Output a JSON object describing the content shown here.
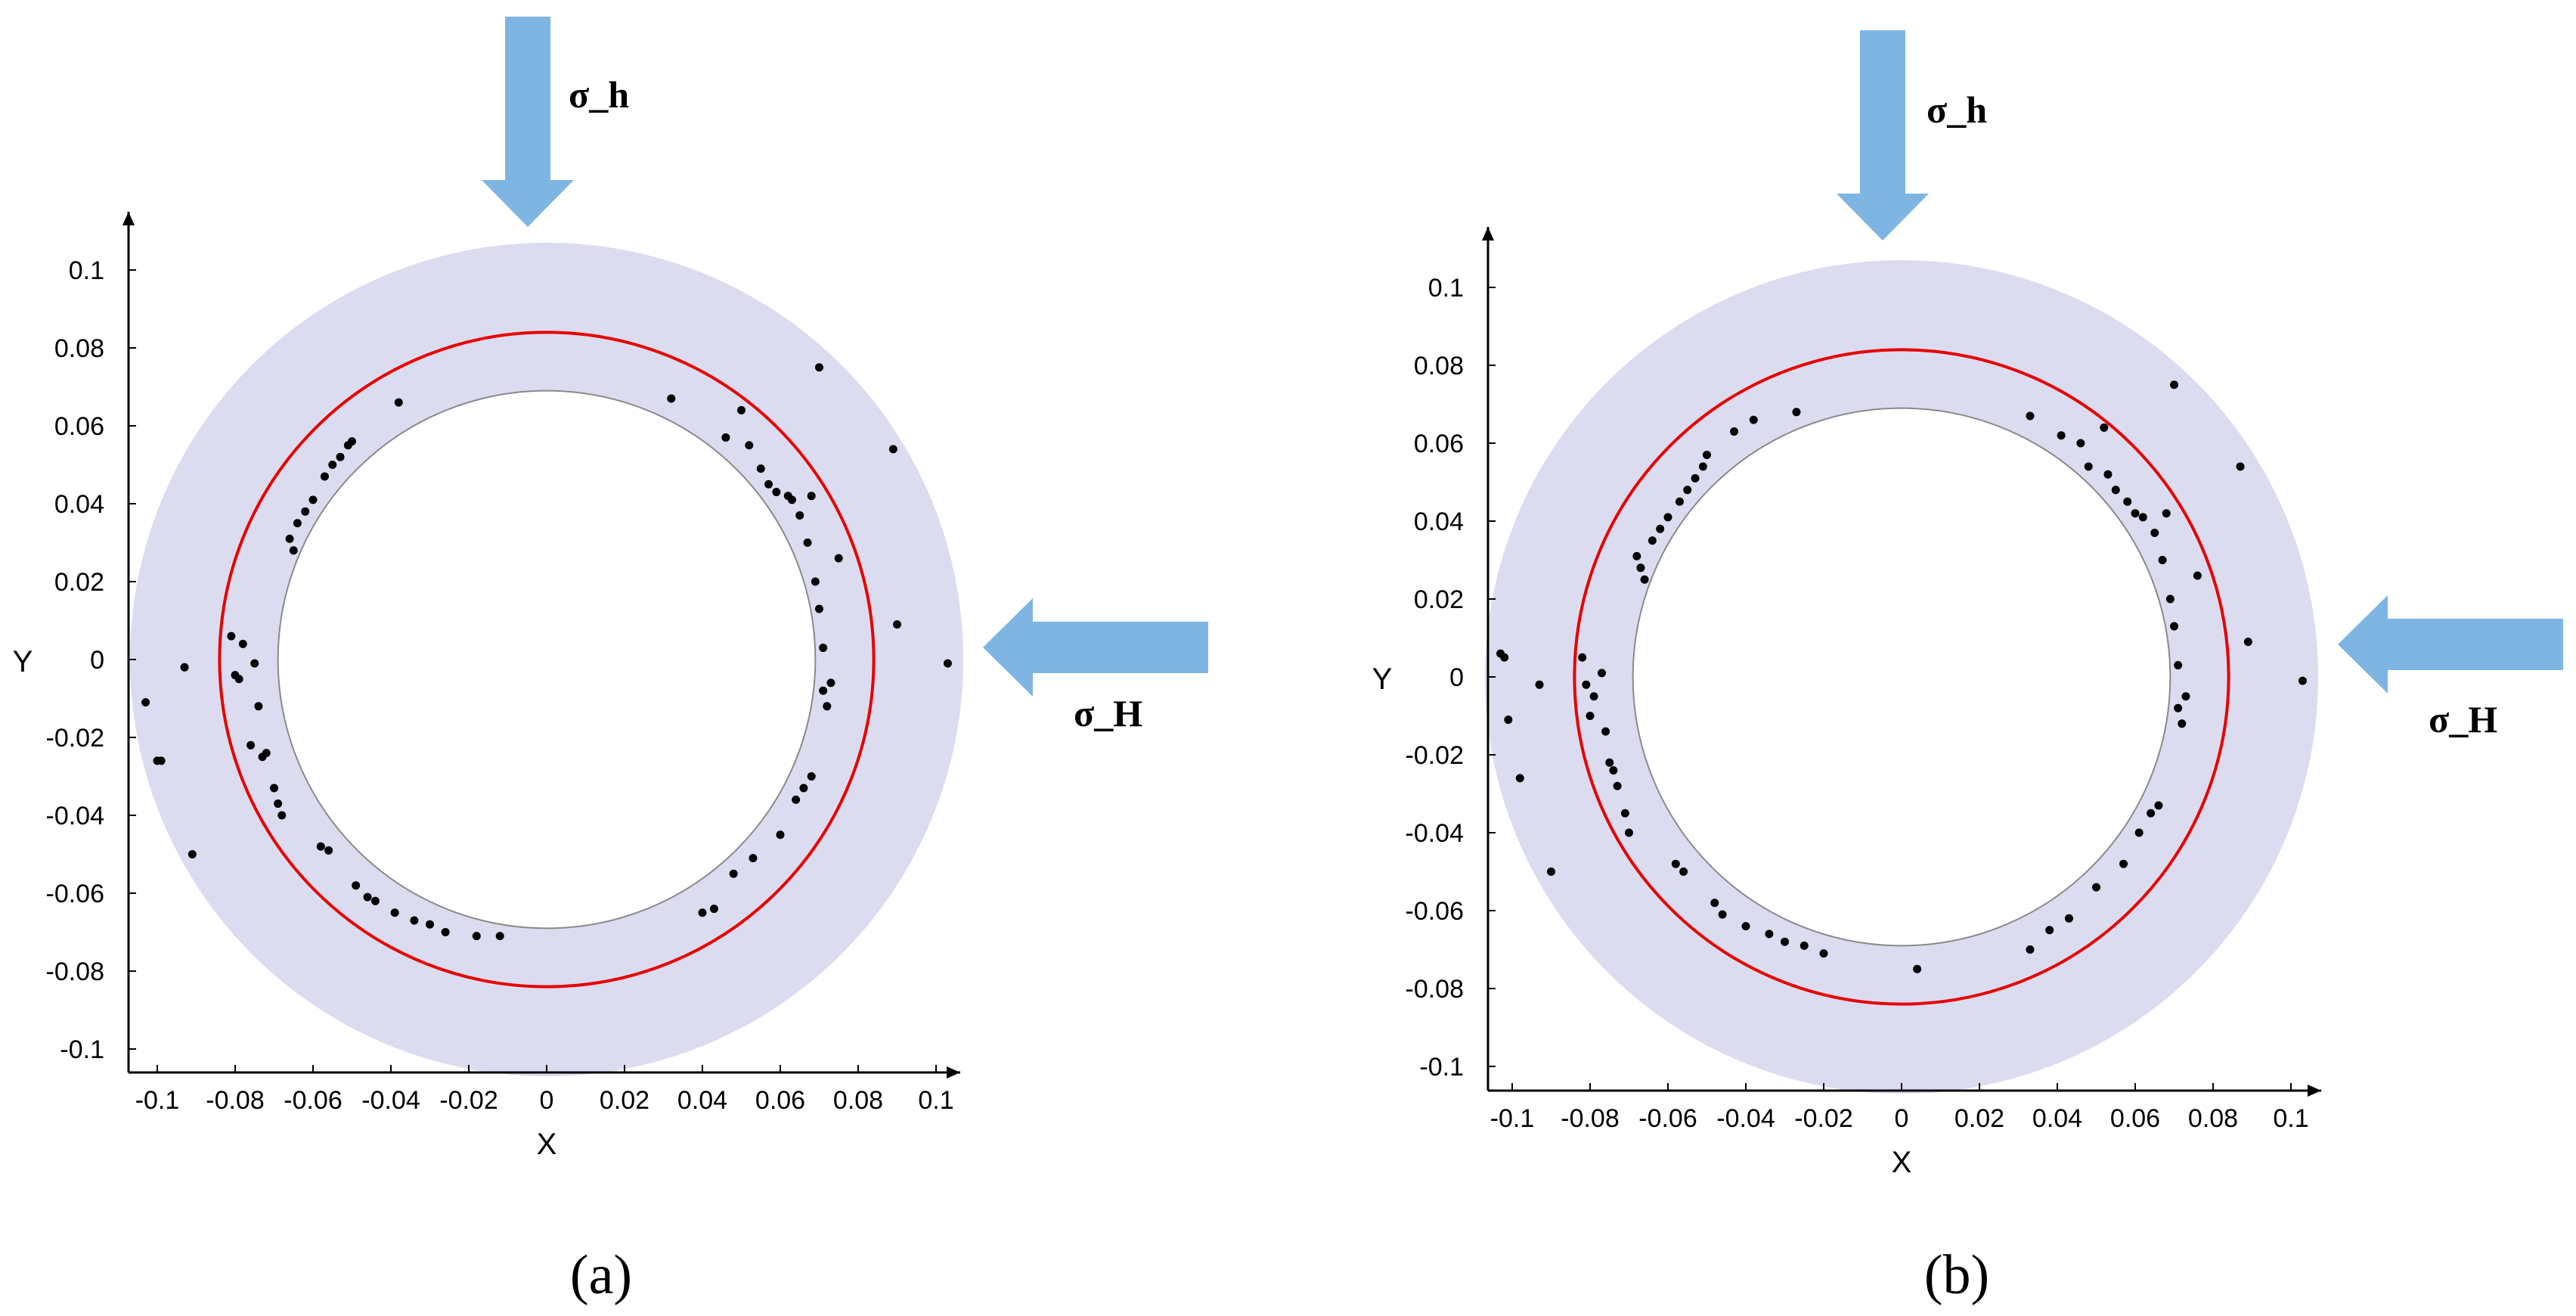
{
  "chart_data": [
    {
      "type": "scatter",
      "panel_label": "(a)",
      "xlabel": "X",
      "ylabel": "Y",
      "xlim": [
        -0.108,
        0.108
      ],
      "ylim": [
        -0.108,
        0.112
      ],
      "x_ticks": [
        "-0.1",
        "-0.08",
        "-0.06",
        "-0.04",
        "-0.02",
        "0",
        "0.02",
        "0.04",
        "0.06",
        "0.08",
        "0.1"
      ],
      "y_ticks": [
        "0.1",
        "0.08",
        "0.06",
        "0.04",
        "0.02",
        "0",
        "-0.02",
        "-0.04",
        "-0.06",
        "-0.08",
        "-0.1"
      ],
      "colors": {
        "rock": "#dcdcf0",
        "yield_circle": "#e60000",
        "points": "#000000",
        "arrow": "#7fb5e3"
      },
      "outer_radius": 0.107,
      "plastic_zone_radius": 0.084,
      "borehole_radius": 0.069,
      "stress_labels": {
        "vertical": "σ_h",
        "horizontal": "σ_H"
      },
      "points": [
        [
          -0.103,
          -0.011
        ],
        [
          -0.1,
          -0.026
        ],
        [
          -0.099,
          -0.026
        ],
        [
          -0.093,
          -0.002
        ],
        [
          -0.091,
          -0.05
        ],
        [
          -0.081,
          0.006
        ],
        [
          -0.08,
          -0.004
        ],
        [
          -0.079,
          -0.005
        ],
        [
          -0.078,
          0.004
        ],
        [
          -0.076,
          -0.022
        ],
        [
          -0.075,
          -0.001
        ],
        [
          -0.074,
          -0.012
        ],
        [
          -0.073,
          -0.025
        ],
        [
          -0.072,
          -0.024
        ],
        [
          -0.07,
          -0.033
        ],
        [
          -0.069,
          -0.037
        ],
        [
          -0.068,
          -0.04
        ],
        [
          -0.066,
          0.031
        ],
        [
          -0.065,
          0.028
        ],
        [
          -0.064,
          0.035
        ],
        [
          -0.062,
          0.038
        ],
        [
          -0.06,
          0.041
        ],
        [
          -0.058,
          -0.048
        ],
        [
          -0.057,
          0.047
        ],
        [
          -0.056,
          -0.049
        ],
        [
          -0.055,
          0.05
        ],
        [
          -0.053,
          0.052
        ],
        [
          -0.051,
          0.055
        ],
        [
          -0.05,
          0.056
        ],
        [
          -0.049,
          -0.058
        ],
        [
          -0.046,
          -0.061
        ],
        [
          -0.044,
          -0.062
        ],
        [
          -0.039,
          -0.065
        ],
        [
          -0.038,
          0.066
        ],
        [
          -0.034,
          -0.067
        ],
        [
          -0.03,
          -0.068
        ],
        [
          -0.026,
          -0.07
        ],
        [
          -0.018,
          -0.071
        ],
        [
          -0.012,
          -0.071
        ],
        [
          0.032,
          0.067
        ],
        [
          0.04,
          -0.065
        ],
        [
          0.043,
          -0.064
        ],
        [
          0.046,
          0.057
        ],
        [
          0.048,
          -0.055
        ],
        [
          0.05,
          0.064
        ],
        [
          0.052,
          0.055
        ],
        [
          0.053,
          -0.051
        ],
        [
          0.055,
          0.049
        ],
        [
          0.057,
          0.045
        ],
        [
          0.059,
          0.043
        ],
        [
          0.06,
          -0.045
        ],
        [
          0.062,
          0.042
        ],
        [
          0.063,
          0.041
        ],
        [
          0.064,
          -0.036
        ],
        [
          0.065,
          0.037
        ],
        [
          0.066,
          -0.033
        ],
        [
          0.067,
          0.03
        ],
        [
          0.068,
          0.042
        ],
        [
          0.068,
          -0.03
        ],
        [
          0.069,
          0.02
        ],
        [
          0.07,
          0.075
        ],
        [
          0.07,
          0.013
        ],
        [
          0.071,
          0.003
        ],
        [
          0.071,
          -0.008
        ],
        [
          0.072,
          -0.012
        ],
        [
          0.073,
          -0.006
        ],
        [
          0.075,
          0.026
        ],
        [
          0.089,
          0.054
        ],
        [
          0.09,
          0.009
        ],
        [
          0.103,
          -0.001
        ]
      ]
    },
    {
      "type": "scatter",
      "panel_label": "(b)",
      "xlabel": "X",
      "ylabel": "Y",
      "xlim": [
        -0.108,
        0.108
      ],
      "ylim": [
        -0.108,
        0.112
      ],
      "x_ticks": [
        "-0.1",
        "-0.08",
        "-0.06",
        "-0.04",
        "-0.02",
        "0",
        "0.02",
        "0.04",
        "0.06",
        "0.08",
        "0.1"
      ],
      "y_ticks": [
        "0.1",
        "0.08",
        "0.06",
        "0.04",
        "0.02",
        "0",
        "-0.02",
        "-0.04",
        "-0.06",
        "-0.08",
        "-0.1"
      ],
      "colors": {
        "rock": "#dcdcf0",
        "yield_circle": "#e60000",
        "points": "#000000",
        "arrow": "#7fb5e3"
      },
      "outer_radius": 0.107,
      "plastic_zone_radius": 0.084,
      "borehole_radius": 0.069,
      "stress_labels": {
        "vertical": "σ_h",
        "horizontal": "σ_H"
      },
      "points": [
        [
          -0.103,
          0.006
        ],
        [
          -0.102,
          0.005
        ],
        [
          -0.101,
          -0.011
        ],
        [
          -0.098,
          -0.026
        ],
        [
          -0.093,
          -0.002
        ],
        [
          -0.09,
          -0.05
        ],
        [
          -0.082,
          0.005
        ],
        [
          -0.081,
          -0.002
        ],
        [
          -0.08,
          -0.01
        ],
        [
          -0.079,
          -0.005
        ],
        [
          -0.077,
          0.001
        ],
        [
          -0.076,
          -0.014
        ],
        [
          -0.075,
          -0.022
        ],
        [
          -0.074,
          -0.024
        ],
        [
          -0.073,
          -0.028
        ],
        [
          -0.071,
          -0.035
        ],
        [
          -0.07,
          -0.04
        ],
        [
          -0.068,
          0.031
        ],
        [
          -0.067,
          0.028
        ],
        [
          -0.066,
          0.025
        ],
        [
          -0.064,
          0.035
        ],
        [
          -0.062,
          0.038
        ],
        [
          -0.06,
          0.041
        ],
        [
          -0.058,
          -0.048
        ],
        [
          -0.057,
          0.045
        ],
        [
          -0.056,
          -0.05
        ],
        [
          -0.055,
          0.048
        ],
        [
          -0.053,
          0.051
        ],
        [
          -0.051,
          0.054
        ],
        [
          -0.05,
          0.057
        ],
        [
          -0.048,
          -0.058
        ],
        [
          -0.046,
          -0.061
        ],
        [
          -0.043,
          0.063
        ],
        [
          -0.04,
          -0.064
        ],
        [
          -0.038,
          0.066
        ],
        [
          -0.034,
          -0.066
        ],
        [
          -0.03,
          -0.068
        ],
        [
          -0.027,
          0.068
        ],
        [
          -0.025,
          -0.069
        ],
        [
          -0.02,
          -0.071
        ],
        [
          0.004,
          -0.075
        ],
        [
          0.033,
          -0.07
        ],
        [
          0.033,
          0.067
        ],
        [
          0.038,
          -0.065
        ],
        [
          0.041,
          0.062
        ],
        [
          0.043,
          -0.062
        ],
        [
          0.046,
          0.06
        ],
        [
          0.048,
          0.054
        ],
        [
          0.05,
          -0.054
        ],
        [
          0.052,
          0.064
        ],
        [
          0.053,
          0.052
        ],
        [
          0.055,
          0.048
        ],
        [
          0.057,
          -0.048
        ],
        [
          0.058,
          0.045
        ],
        [
          0.06,
          0.042
        ],
        [
          0.061,
          -0.04
        ],
        [
          0.062,
          0.041
        ],
        [
          0.064,
          -0.035
        ],
        [
          0.065,
          0.037
        ],
        [
          0.066,
          -0.033
        ],
        [
          0.067,
          0.03
        ],
        [
          0.068,
          0.042
        ],
        [
          0.069,
          0.02
        ],
        [
          0.07,
          0.075
        ],
        [
          0.07,
          0.013
        ],
        [
          0.071,
          0.003
        ],
        [
          0.071,
          -0.008
        ],
        [
          0.072,
          -0.012
        ],
        [
          0.073,
          -0.005
        ],
        [
          0.076,
          0.026
        ],
        [
          0.087,
          0.054
        ],
        [
          0.089,
          0.009
        ],
        [
          0.103,
          -0.001
        ]
      ]
    }
  ]
}
